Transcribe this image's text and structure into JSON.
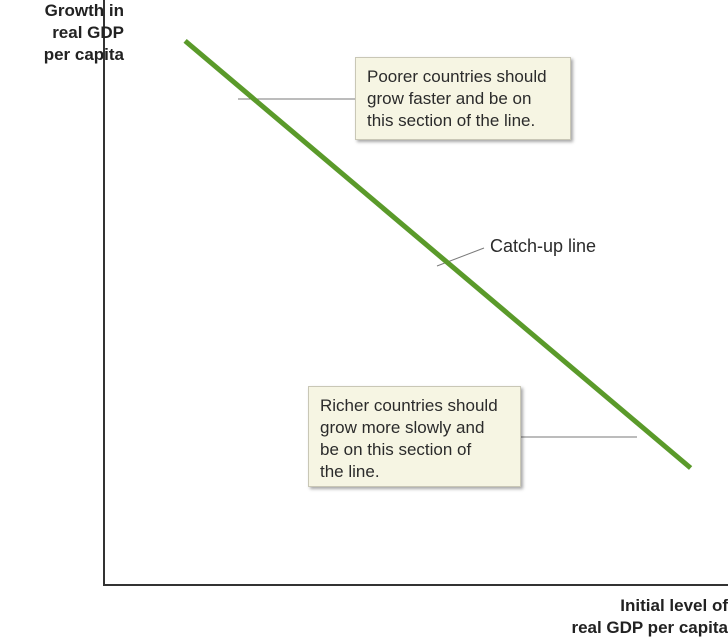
{
  "chart_data": {
    "type": "line",
    "title": "",
    "ylabel": [
      "Growth in",
      "real GDP",
      "per capita"
    ],
    "xlabel": [
      "Initial level of",
      "real GDP per capita"
    ],
    "series": [
      {
        "name": "Catch-up line",
        "x": [
          0.13,
          0.94
        ],
        "y": [
          0.93,
          0.2
        ],
        "color": "#5a9a2a"
      }
    ],
    "annotations": [
      {
        "id": "poorer",
        "lines": [
          "Poorer countries should",
          "grow faster and be on",
          "this section of the line."
        ]
      },
      {
        "id": "richer",
        "lines": [
          "Richer countries should",
          "grow more slowly and",
          "be on this section of",
          "the line."
        ]
      }
    ],
    "line_label": "Catch-up line",
    "grid": false,
    "ticks": false
  }
}
